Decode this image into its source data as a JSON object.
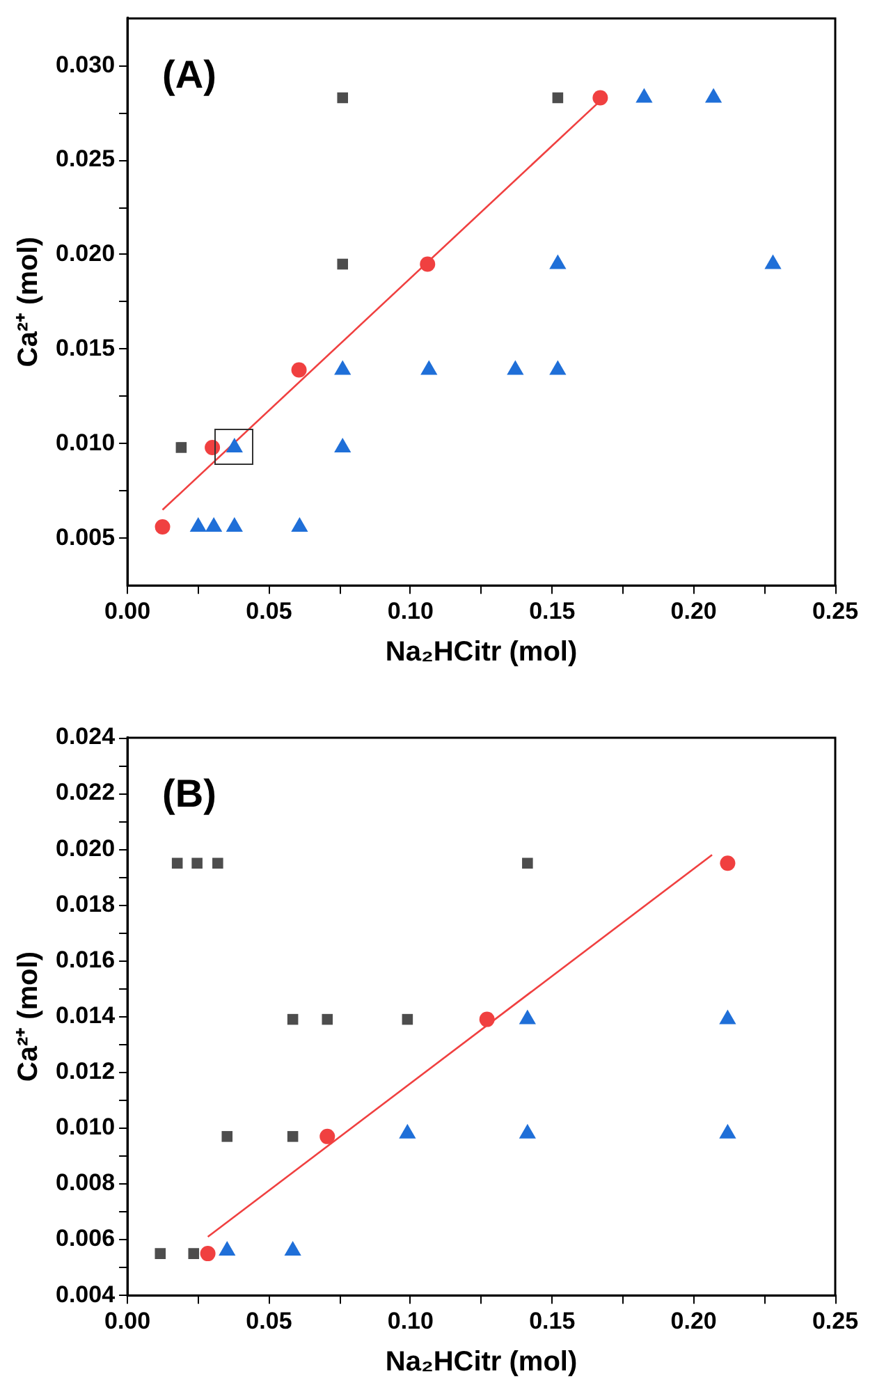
{
  "chart_data": [
    {
      "type": "scatter",
      "xlabel": "Na₂HCitr (mol)",
      "ylabel": "Ca²⁺ (mol)",
      "annotations": [
        "(A)"
      ],
      "xlim": [
        0,
        0.25
      ],
      "ylim": [
        0.0025,
        0.0325
      ],
      "xticks": [
        {
          "value": 0,
          "label": "0.00"
        },
        {
          "value": 0.025,
          "label": null
        },
        {
          "value": 0.05,
          "label": "0.05"
        },
        {
          "value": 0.075,
          "label": null
        },
        {
          "value": 0.1,
          "label": "0.10"
        },
        {
          "value": 0.125,
          "label": null
        },
        {
          "value": 0.15,
          "label": "0.15"
        },
        {
          "value": 0.175,
          "label": null
        },
        {
          "value": 0.2,
          "label": "0.20"
        },
        {
          "value": 0.225,
          "label": null
        },
        {
          "value": 0.25,
          "label": "0.25"
        }
      ],
      "yticks": [
        {
          "value": 0.005,
          "label": "0.005"
        },
        {
          "value": 0.0075,
          "label": null
        },
        {
          "value": 0.01,
          "label": "0.010"
        },
        {
          "value": 0.0125,
          "label": null
        },
        {
          "value": 0.015,
          "label": "0.015"
        },
        {
          "value": 0.0175,
          "label": null
        },
        {
          "value": 0.02,
          "label": "0.020"
        },
        {
          "value": 0.0225,
          "label": null
        },
        {
          "value": 0.025,
          "label": "0.025"
        },
        {
          "value": 0.0275,
          "label": null
        },
        {
          "value": 0.03,
          "label": "0.030"
        }
      ],
      "series": [
        {
          "marker": "square",
          "color": "#4d4d4d",
          "x": [
            0.019,
            0.076,
            0.076,
            0.152
          ],
          "values": [
            0.0098,
            0.0195,
            0.0283,
            0.0283
          ]
        },
        {
          "marker": "circle",
          "color": "#f04040",
          "x": [
            0.0124,
            0.03,
            0.0606,
            0.106,
            0.167
          ],
          "values": [
            0.0056,
            0.0098,
            0.0139,
            0.0195,
            0.0283
          ]
        },
        {
          "marker": "triangle",
          "color": "#1f6fd8",
          "x": [
            0.025,
            0.0305,
            0.0378,
            0.0608,
            0.0378,
            0.076,
            0.076,
            0.1065,
            0.137,
            0.152,
            0.152,
            0.228,
            0.1825,
            0.207
          ],
          "values": [
            0.0056,
            0.0056,
            0.0056,
            0.0056,
            0.0098,
            0.0098,
            0.0139,
            0.0139,
            0.0139,
            0.0139,
            0.0195,
            0.0195,
            0.0283,
            0.0283
          ]
        },
        {
          "type": "line",
          "marker": "none",
          "color": "#f04040",
          "x": [
            0.0124,
            0.166
          ],
          "values": [
            0.0065,
            0.028
          ]
        }
      ]
    },
    {
      "type": "scatter",
      "xlabel": "Na₂HCitr (mol)",
      "ylabel": "Ca²⁺ (mol)",
      "annotations": [
        "(B)"
      ],
      "xlim": [
        0,
        0.25
      ],
      "ylim": [
        0.004,
        0.024
      ],
      "xticks": [
        {
          "value": 0,
          "label": "0.00"
        },
        {
          "value": 0.025,
          "label": null
        },
        {
          "value": 0.05,
          "label": "0.05"
        },
        {
          "value": 0.075,
          "label": null
        },
        {
          "value": 0.1,
          "label": "0.10"
        },
        {
          "value": 0.125,
          "label": null
        },
        {
          "value": 0.15,
          "label": "0.15"
        },
        {
          "value": 0.175,
          "label": null
        },
        {
          "value": 0.2,
          "label": "0.20"
        },
        {
          "value": 0.225,
          "label": null
        },
        {
          "value": 0.25,
          "label": "0.25"
        }
      ],
      "yticks": [
        {
          "value": 0.004,
          "label": "0.004"
        },
        {
          "value": 0.005,
          "label": null
        },
        {
          "value": 0.006,
          "label": "0.006"
        },
        {
          "value": 0.007,
          "label": null
        },
        {
          "value": 0.008,
          "label": "0.008"
        },
        {
          "value": 0.009,
          "label": null
        },
        {
          "value": 0.01,
          "label": "0.010"
        },
        {
          "value": 0.011,
          "label": null
        },
        {
          "value": 0.012,
          "label": "0.012"
        },
        {
          "value": 0.013,
          "label": null
        },
        {
          "value": 0.014,
          "label": "0.014"
        },
        {
          "value": 0.015,
          "label": null
        },
        {
          "value": 0.016,
          "label": "0.016"
        },
        {
          "value": 0.017,
          "label": null
        },
        {
          "value": 0.018,
          "label": "0.018"
        },
        {
          "value": 0.019,
          "label": null
        },
        {
          "value": 0.02,
          "label": "0.020"
        },
        {
          "value": 0.021,
          "label": null
        },
        {
          "value": 0.022,
          "label": "0.022"
        },
        {
          "value": 0.023,
          "label": null
        },
        {
          "value": 0.024,
          "label": "0.024"
        }
      ],
      "series": [
        {
          "marker": "square",
          "color": "#4d4d4d",
          "x": [
            0.0116,
            0.0234,
            0.0176,
            0.0246,
            0.0319,
            0.1413,
            0.0584,
            0.0706,
            0.0989,
            0.0352,
            0.0584
          ],
          "values": [
            0.0055,
            0.0055,
            0.0195,
            0.0195,
            0.0195,
            0.0195,
            0.0139,
            0.0139,
            0.0139,
            0.0097,
            0.0097
          ]
        },
        {
          "marker": "circle",
          "color": "#f04040",
          "x": [
            0.0284,
            0.0706,
            0.127,
            0.212
          ],
          "values": [
            0.0055,
            0.0097,
            0.0139,
            0.0195
          ]
        },
        {
          "marker": "triangle",
          "color": "#1f6fd8",
          "x": [
            0.0352,
            0.0584,
            0.0989,
            0.1413,
            0.212,
            0.1413,
            0.212
          ],
          "values": [
            0.0056,
            0.0056,
            0.0098,
            0.0098,
            0.0098,
            0.0139,
            0.0139
          ]
        },
        {
          "type": "line",
          "marker": "none",
          "color": "#f04040",
          "x": [
            0.0284,
            0.2065
          ],
          "values": [
            0.0061,
            0.0198
          ]
        }
      ]
    }
  ]
}
